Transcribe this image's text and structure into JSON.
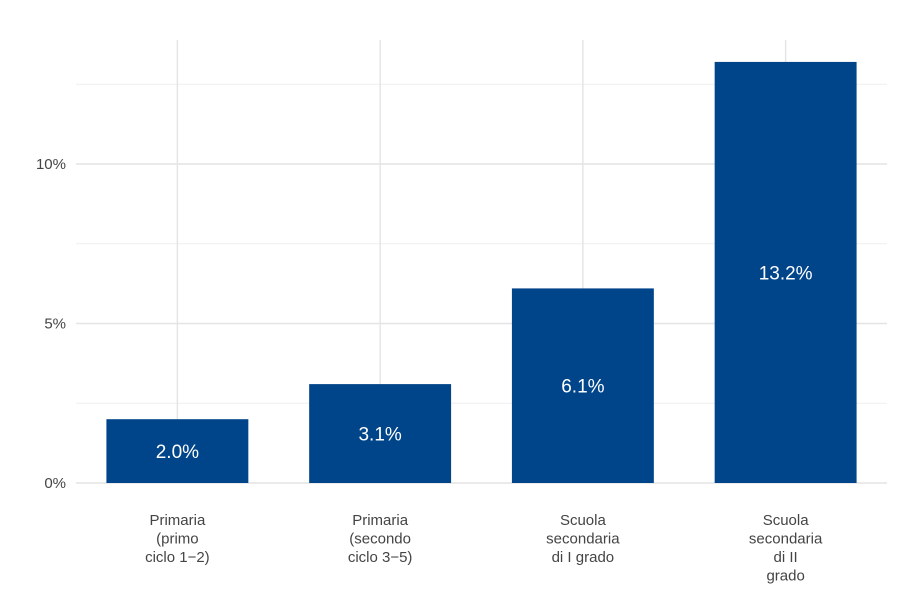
{
  "chart_data": {
    "type": "bar",
    "title": "",
    "xlabel": "",
    "ylabel": "",
    "ylim": [
      0,
      13.9
    ],
    "yticks": [
      0,
      5,
      10
    ],
    "ytick_labels": [
      "0%",
      "5%",
      "10%"
    ],
    "grid": true,
    "bar_color": "#00448a",
    "categories": [
      [
        "Primaria",
        "(primo",
        "ciclo 1−2)"
      ],
      [
        "Primaria",
        "(secondo",
        "ciclo 3−5)"
      ],
      [
        "Scuola",
        "secondaria",
        "di I grado"
      ],
      [
        "Scuola",
        "secondaria",
        "di II",
        "grado"
      ]
    ],
    "values": [
      2.0,
      3.1,
      6.1,
      13.2
    ],
    "data_labels": [
      "2.0%",
      "3.1%",
      "6.1%",
      "13.2%"
    ]
  }
}
